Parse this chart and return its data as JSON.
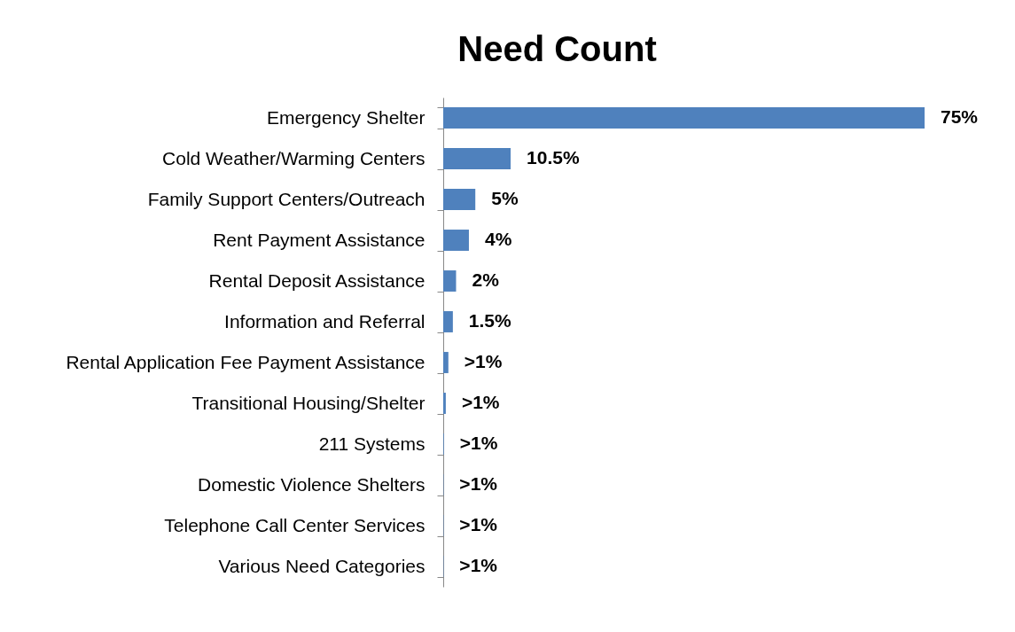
{
  "chart_data": {
    "type": "bar",
    "orientation": "horizontal",
    "title": "Need Count",
    "categories": [
      "Emergency Shelter",
      "Cold Weather/Warming Centers",
      "Family Support Centers/Outreach",
      "Rent Payment Assistance",
      "Rental Deposit Assistance",
      "Information and Referral",
      "Rental Application Fee Payment Assistance",
      "Transitional Housing/Shelter",
      "211 Systems",
      "Domestic Violence Shelters",
      "Telephone Call Center Services",
      "Various Need Categories"
    ],
    "values": [
      75,
      10.5,
      5,
      4,
      2,
      1.5,
      0.8,
      0.4,
      0.1,
      0.05,
      0.05,
      0.05
    ],
    "value_labels": [
      "75%",
      "10.5%",
      "5%",
      "4%",
      "2%",
      "1.5%",
      ">1%",
      ">1%",
      ">1%",
      ">1%",
      ">1%",
      ">1%"
    ],
    "color": "#4f81bd"
  }
}
